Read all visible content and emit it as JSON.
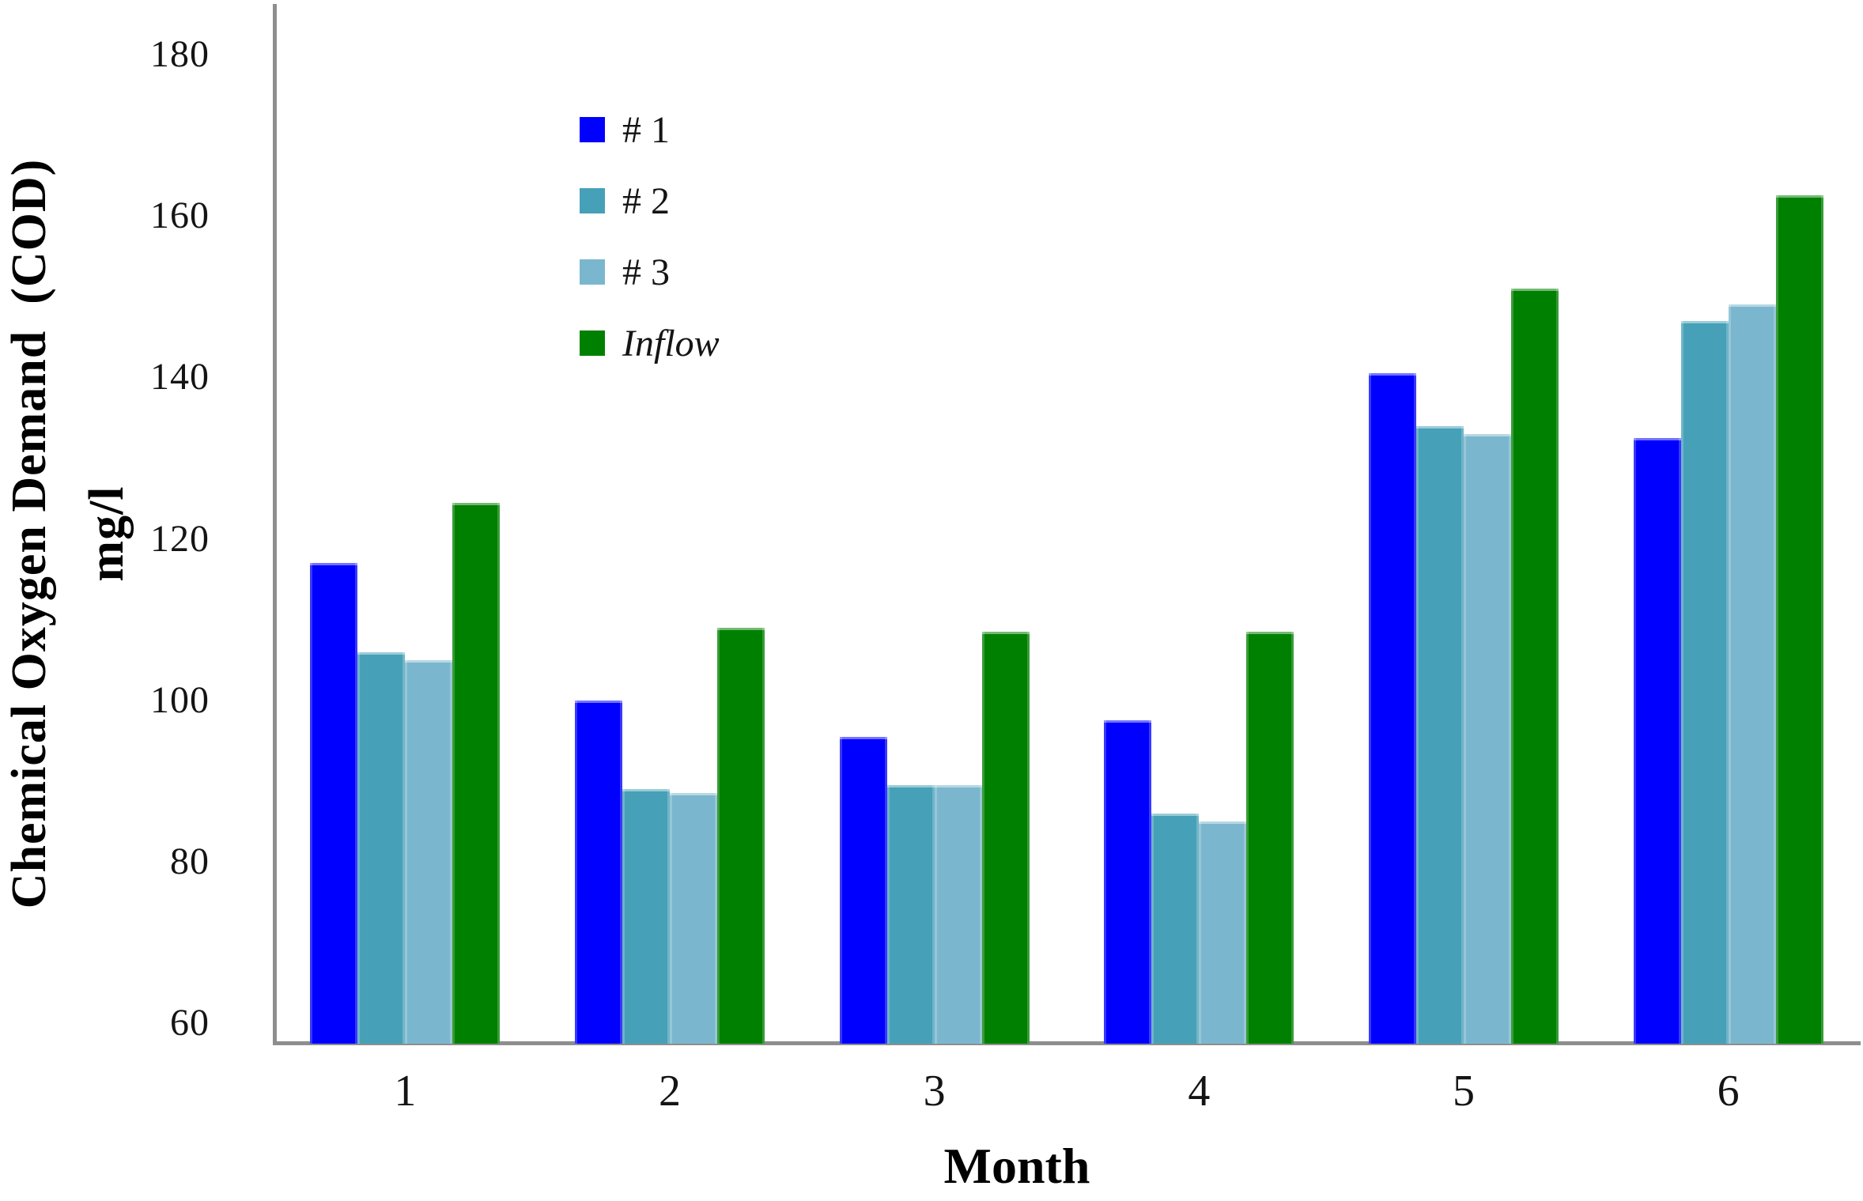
{
  "chart_data": {
    "type": "bar",
    "title": "",
    "xlabel": "Month",
    "ylabel_line1": "Chemical Oxygen Demand  (COD)",
    "ylabel_line2": "mg/l",
    "categories": [
      "1",
      "2",
      "3",
      "4",
      "5",
      "6"
    ],
    "series": [
      {
        "name": "# 1",
        "color": "#0000fe",
        "italic": false,
        "values": [
          117,
          100,
          95.5,
          97.5,
          140.5,
          132.5
        ]
      },
      {
        "name": "# 2",
        "color": "#46a0b8",
        "italic": false,
        "values": [
          106,
          89,
          89.5,
          86,
          134,
          147
        ]
      },
      {
        "name": "# 3",
        "color": "#7ab7ce",
        "italic": false,
        "values": [
          105,
          88.5,
          89.5,
          85,
          133,
          149
        ]
      },
      {
        "name": "Inflow",
        "color": "#008000",
        "italic": true,
        "values": [
          124.5,
          109,
          108.5,
          108.5,
          151,
          162.5
        ]
      }
    ],
    "y_ticks": [
      60,
      80,
      100,
      120,
      140,
      160,
      180
    ],
    "ylim": [
      60,
      180
    ],
    "units": "mg/l",
    "grid": false,
    "legend_position": "upper-left-inside",
    "axis_color": "#8e8e8e"
  }
}
